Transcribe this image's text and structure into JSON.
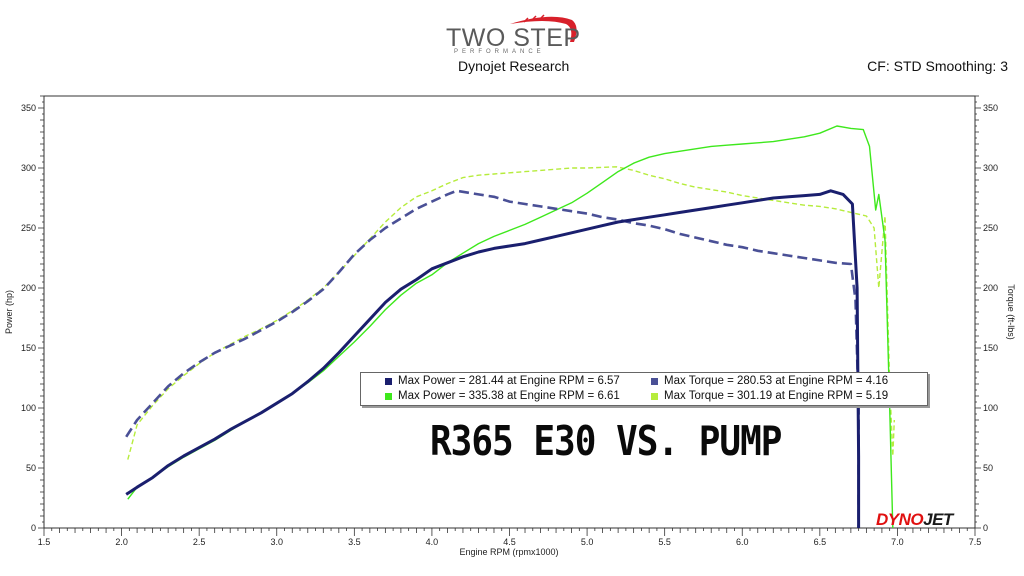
{
  "header": {
    "logo_main": "TWO STEP",
    "logo_sub": "PERFORMANCE",
    "subtitle": "Dynojet Research",
    "cf_text": "CF: STD Smoothing: 3"
  },
  "watermark": {
    "part1": "DYNO",
    "part2": "JET"
  },
  "chart_data": {
    "type": "line",
    "title": "R365 E30 VS. PUMP",
    "xlabel": "Engine RPM (rpmx1000)",
    "ylabel": "Power (hp)",
    "y2label": "Torque (ft-lbs)",
    "xlim": [
      1.5,
      7.5
    ],
    "ylim": [
      0,
      360
    ],
    "y2lim": [
      0,
      360
    ],
    "xticks": [
      "1.5",
      "2.0",
      "2.5",
      "3.0",
      "3.5",
      "4.0",
      "4.5",
      "5.0",
      "5.5",
      "6.0",
      "6.5",
      "7.0",
      "7.5"
    ],
    "xtick_values": [
      1.5,
      2.0,
      2.5,
      3.0,
      3.5,
      4.0,
      4.5,
      5.0,
      5.5,
      6.0,
      6.5,
      7.0,
      7.5
    ],
    "yticks": [
      "0",
      "50",
      "100",
      "150",
      "200",
      "250",
      "300",
      "350"
    ],
    "ytick_values": [
      0,
      50,
      100,
      150,
      200,
      250,
      300,
      350
    ],
    "grid": false,
    "legend_placement": "center-right",
    "series": [
      {
        "name": "Max Power = 281.44 at Engine RPM = 6.57",
        "color": "#1a1f6e",
        "dash": false,
        "values": [
          [
            2.03,
            28
          ],
          [
            2.1,
            34
          ],
          [
            2.2,
            42
          ],
          [
            2.3,
            52
          ],
          [
            2.4,
            60
          ],
          [
            2.5,
            67
          ],
          [
            2.6,
            74
          ],
          [
            2.7,
            82
          ],
          [
            2.8,
            89
          ],
          [
            2.9,
            96
          ],
          [
            3.0,
            104
          ],
          [
            3.1,
            112
          ],
          [
            3.2,
            122
          ],
          [
            3.3,
            133
          ],
          [
            3.4,
            146
          ],
          [
            3.5,
            160
          ],
          [
            3.6,
            174
          ],
          [
            3.7,
            188
          ],
          [
            3.8,
            199
          ],
          [
            3.9,
            207
          ],
          [
            4.0,
            216
          ],
          [
            4.1,
            221
          ],
          [
            4.2,
            226
          ],
          [
            4.3,
            230
          ],
          [
            4.4,
            233
          ],
          [
            4.5,
            235
          ],
          [
            4.6,
            237
          ],
          [
            4.7,
            240
          ],
          [
            4.8,
            243
          ],
          [
            4.9,
            246
          ],
          [
            5.0,
            249
          ],
          [
            5.1,
            252
          ],
          [
            5.2,
            255
          ],
          [
            5.3,
            257
          ],
          [
            5.4,
            259
          ],
          [
            5.5,
            261
          ],
          [
            5.6,
            263
          ],
          [
            5.7,
            265
          ],
          [
            5.8,
            267
          ],
          [
            5.9,
            269
          ],
          [
            6.0,
            271
          ],
          [
            6.1,
            273
          ],
          [
            6.2,
            275
          ],
          [
            6.3,
            276
          ],
          [
            6.4,
            277
          ],
          [
            6.5,
            278
          ],
          [
            6.57,
            281
          ],
          [
            6.65,
            278
          ],
          [
            6.71,
            270
          ],
          [
            6.74,
            200
          ],
          [
            6.75,
            60
          ],
          [
            6.75,
            0
          ]
        ]
      },
      {
        "name": "Max Power = 335.38 at Engine RPM = 6.61",
        "color": "#3ee81c",
        "dash": false,
        "values": [
          [
            2.04,
            24
          ],
          [
            2.1,
            34
          ],
          [
            2.2,
            42
          ],
          [
            2.3,
            51
          ],
          [
            2.4,
            59
          ],
          [
            2.5,
            66
          ],
          [
            2.6,
            73
          ],
          [
            2.7,
            81
          ],
          [
            2.8,
            89
          ],
          [
            2.9,
            96
          ],
          [
            3.0,
            104
          ],
          [
            3.1,
            112
          ],
          [
            3.2,
            121
          ],
          [
            3.3,
            131
          ],
          [
            3.4,
            143
          ],
          [
            3.5,
            155
          ],
          [
            3.6,
            168
          ],
          [
            3.7,
            182
          ],
          [
            3.8,
            194
          ],
          [
            3.9,
            204
          ],
          [
            4.0,
            211
          ],
          [
            4.1,
            221
          ],
          [
            4.2,
            229
          ],
          [
            4.3,
            237
          ],
          [
            4.4,
            243
          ],
          [
            4.5,
            248
          ],
          [
            4.6,
            253
          ],
          [
            4.7,
            259
          ],
          [
            4.8,
            265
          ],
          [
            4.9,
            271
          ],
          [
            5.0,
            279
          ],
          [
            5.1,
            288
          ],
          [
            5.2,
            297
          ],
          [
            5.3,
            304
          ],
          [
            5.4,
            309
          ],
          [
            5.5,
            312
          ],
          [
            5.6,
            314
          ],
          [
            5.7,
            316
          ],
          [
            5.8,
            318
          ],
          [
            5.9,
            319
          ],
          [
            6.0,
            320
          ],
          [
            6.1,
            321
          ],
          [
            6.2,
            322
          ],
          [
            6.3,
            324
          ],
          [
            6.4,
            326
          ],
          [
            6.5,
            329
          ],
          [
            6.61,
            335
          ],
          [
            6.7,
            333
          ],
          [
            6.78,
            332
          ],
          [
            6.82,
            318
          ],
          [
            6.86,
            265
          ],
          [
            6.88,
            278
          ],
          [
            6.92,
            240
          ],
          [
            6.95,
            100
          ],
          [
            6.97,
            0
          ]
        ]
      },
      {
        "name": "Max Torque = 280.53 at Engine RPM = 4.16",
        "color": "#4a5096",
        "dash": true,
        "values": [
          [
            2.03,
            76
          ],
          [
            2.1,
            90
          ],
          [
            2.2,
            104
          ],
          [
            2.3,
            118
          ],
          [
            2.4,
            129
          ],
          [
            2.5,
            138
          ],
          [
            2.6,
            146
          ],
          [
            2.7,
            152
          ],
          [
            2.8,
            158
          ],
          [
            2.9,
            165
          ],
          [
            3.0,
            172
          ],
          [
            3.1,
            180
          ],
          [
            3.2,
            189
          ],
          [
            3.3,
            199
          ],
          [
            3.4,
            213
          ],
          [
            3.5,
            228
          ],
          [
            3.6,
            240
          ],
          [
            3.7,
            250
          ],
          [
            3.8,
            258
          ],
          [
            3.9,
            266
          ],
          [
            4.0,
            272
          ],
          [
            4.1,
            278
          ],
          [
            4.16,
            281
          ],
          [
            4.3,
            278
          ],
          [
            4.4,
            276
          ],
          [
            4.5,
            272
          ],
          [
            4.6,
            270
          ],
          [
            4.7,
            268
          ],
          [
            4.8,
            266
          ],
          [
            4.9,
            264
          ],
          [
            5.0,
            262
          ],
          [
            5.1,
            259
          ],
          [
            5.2,
            257
          ],
          [
            5.3,
            254
          ],
          [
            5.4,
            252
          ],
          [
            5.5,
            249
          ],
          [
            5.6,
            245
          ],
          [
            5.7,
            242
          ],
          [
            5.8,
            239
          ],
          [
            5.9,
            236
          ],
          [
            6.0,
            234
          ],
          [
            6.1,
            231
          ],
          [
            6.2,
            229
          ],
          [
            6.3,
            227
          ],
          [
            6.4,
            225
          ],
          [
            6.5,
            223
          ],
          [
            6.6,
            221
          ],
          [
            6.7,
            220
          ],
          [
            6.73,
            190
          ],
          [
            6.75,
            100
          ],
          [
            6.75,
            0
          ]
        ]
      },
      {
        "name": "Max Torque = 301.19 at Engine RPM = 5.19",
        "color": "#b6ec3c",
        "dash": false,
        "values": [
          [
            2.04,
            57
          ],
          [
            2.1,
            86
          ],
          [
            2.2,
            102
          ],
          [
            2.3,
            116
          ],
          [
            2.4,
            127
          ],
          [
            2.5,
            137
          ],
          [
            2.6,
            146
          ],
          [
            2.7,
            153
          ],
          [
            2.8,
            160
          ],
          [
            2.9,
            166
          ],
          [
            3.0,
            173
          ],
          [
            3.1,
            181
          ],
          [
            3.2,
            190
          ],
          [
            3.3,
            200
          ],
          [
            3.4,
            213
          ],
          [
            3.5,
            227
          ],
          [
            3.6,
            241
          ],
          [
            3.7,
            255
          ],
          [
            3.8,
            267
          ],
          [
            3.9,
            276
          ],
          [
            4.0,
            281
          ],
          [
            4.1,
            287
          ],
          [
            4.2,
            292
          ],
          [
            4.3,
            294
          ],
          [
            4.4,
            295
          ],
          [
            4.5,
            296
          ],
          [
            4.6,
            297
          ],
          [
            4.7,
            298
          ],
          [
            4.8,
            299
          ],
          [
            4.9,
            300
          ],
          [
            5.0,
            300
          ],
          [
            5.19,
            301
          ],
          [
            5.3,
            298
          ],
          [
            5.4,
            294
          ],
          [
            5.5,
            291
          ],
          [
            5.6,
            287
          ],
          [
            5.7,
            284
          ],
          [
            5.8,
            282
          ],
          [
            5.9,
            280
          ],
          [
            6.0,
            277
          ],
          [
            6.1,
            275
          ],
          [
            6.2,
            273
          ],
          [
            6.3,
            271
          ],
          [
            6.4,
            269
          ],
          [
            6.5,
            268
          ],
          [
            6.6,
            266
          ],
          [
            6.7,
            263
          ],
          [
            6.8,
            260
          ],
          [
            6.85,
            250
          ],
          [
            6.88,
            200
          ],
          [
            6.92,
            260
          ],
          [
            6.95,
            120
          ],
          [
            6.97,
            60
          ],
          [
            6.98,
            90
          ]
        ]
      }
    ]
  }
}
